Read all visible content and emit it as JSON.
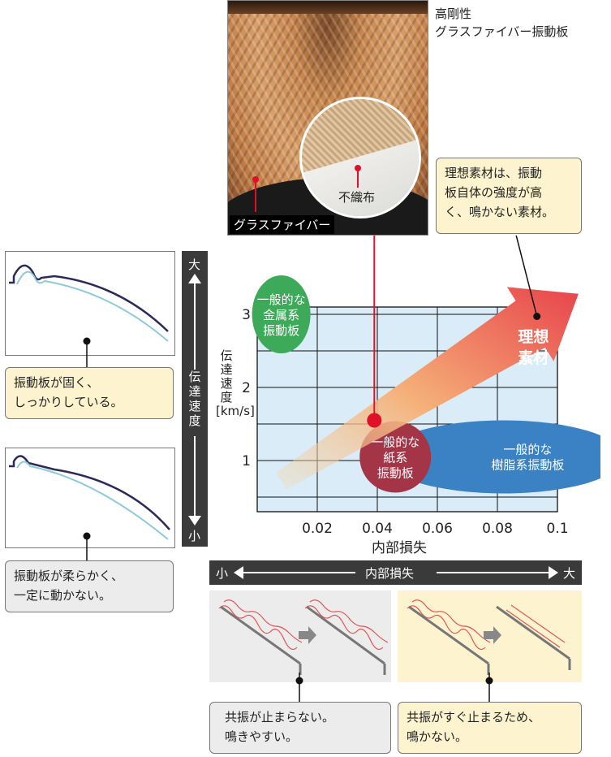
{
  "photo": {
    "title_line1": "高剛性",
    "title_line2": "グラスファイバー振動板",
    "label_fiber": "グラスファイバー",
    "label_nonwoven": "不織布"
  },
  "callout_ideal": {
    "line1": "理想素材は、振動",
    "line2": "板自体の強度が高",
    "line3": "く、鳴かない素材。"
  },
  "left": {
    "box1_line1": "振動板が固く、",
    "box1_line2": "しっかりしている。",
    "box2_line1": "振動板が柔らかく、",
    "box2_line2": "一定に動かない。"
  },
  "vertical_bar": {
    "top": "大",
    "middle": "伝達速度",
    "bottom": "小"
  },
  "horizontal_bar": {
    "left": "小",
    "middle": "内部損失",
    "right": "大"
  },
  "bottom": {
    "left_line1": "共振が止まらない。",
    "left_line2": "鳴きやすい。",
    "right_line1": "共振がすぐ止まるため、",
    "right_line2": "鳴かない。"
  },
  "chart_data": {
    "type": "scatter",
    "xlabel": "内部損失",
    "ylabel": "伝達速度[km/s]",
    "xticks": [
      "0.02",
      "0.04",
      "0.06",
      "0.08",
      "0.1"
    ],
    "yticks": [
      "1",
      "2",
      "3"
    ],
    "xlim": [
      0,
      0.1
    ],
    "ylim": [
      0.3,
      3.1
    ],
    "regions": [
      {
        "name_line1": "一般的な",
        "name_line2": "金属系",
        "name_line3": "振動板",
        "x": 0.008,
        "y": 3.0,
        "color": "#3daa5a"
      },
      {
        "name_line1": "一般的な",
        "name_line2": "紙系",
        "name_line3": "振動板",
        "x": 0.046,
        "y": 1.05,
        "color": "#a33547"
      },
      {
        "name_line1": "一般的な",
        "name_line2": "樹脂系振動板",
        "x": 0.082,
        "y": 1.05,
        "color": "#3b82c4"
      }
    ],
    "point": {
      "x": 0.039,
      "y": 1.55,
      "color": "#e0102a"
    },
    "ideal_label_line1": "理想",
    "ideal_label_line2": "素材"
  },
  "colors": {
    "grid_bg": "#d9ecf7",
    "arrow_start": "#f7d9b0",
    "arrow_end": "#e8434b",
    "dark_bar": "#3a3a3a"
  }
}
